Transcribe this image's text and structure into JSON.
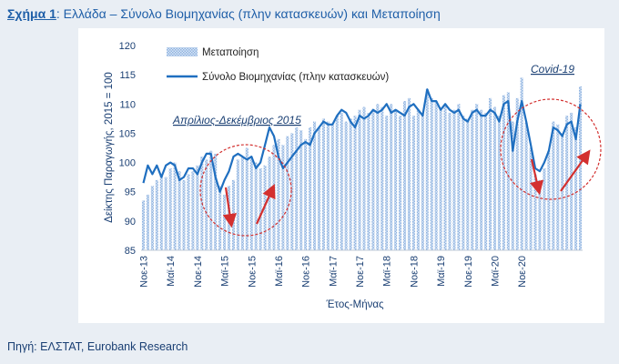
{
  "figure": {
    "label": "Σχήμα 1",
    "title": ": Ελλάδα – Σύνολο Βιομηχανίας (πλην κατασκευών) και Μεταποίηση",
    "source": "Πηγή: ΕΛΣΤΑΤ, Eurobank Research"
  },
  "colors": {
    "line": "#1f6fc0",
    "bars": "#8fb3e0",
    "arrow": "#d3302f",
    "circle": "#d3302f",
    "text": "#1a3f73"
  },
  "chart_data": {
    "type": "bar",
    "ylabel": "Δείκτης Παραγωγής, 2015 = 100",
    "xlabel": "Έτος-Μήνας",
    "ylim": [
      85,
      120
    ],
    "yticks": [
      85,
      90,
      95,
      100,
      105,
      110,
      115,
      120
    ],
    "xtick_labels": [
      "Νοε-13",
      "Μαϊ-14",
      "Νοε-14",
      "Μαϊ-15",
      "Νοε-15",
      "Μαϊ-16",
      "Νοε-16",
      "Μαϊ-17",
      "Νοε-17",
      "Μαϊ-18",
      "Νοε-18",
      "Μαϊ-19",
      "Νοε-19",
      "Μαϊ-20",
      "Νοε-20"
    ],
    "legend_position": "top-left",
    "series": [
      {
        "name": "Μεταποίηση",
        "kind": "bar",
        "values": [
          93.5,
          94.5,
          96,
          97,
          98,
          97.5,
          99,
          100,
          98.5,
          97,
          98,
          98.5,
          99.5,
          101,
          100.5,
          102,
          101.5,
          96,
          94.5,
          96,
          97,
          100.5,
          101,
          102.5,
          101,
          100,
          99,
          99.5,
          101,
          103,
          104,
          103,
          104.5,
          105,
          106,
          105.5,
          104,
          106,
          107,
          106,
          107.5,
          107,
          106.5,
          108,
          108.5,
          107,
          107.5,
          108,
          109,
          109.5,
          108.5,
          109,
          110,
          109.5,
          108,
          110,
          109,
          108,
          110.5,
          111,
          108,
          109,
          108.5,
          112.5,
          111,
          110.5,
          109,
          110,
          108.5,
          109,
          110,
          108,
          107.5,
          109,
          110,
          109,
          108.5,
          111,
          109.5,
          108,
          111.5,
          112,
          107,
          111,
          114.5,
          107,
          102.5,
          98,
          97,
          99,
          102,
          107,
          106.5,
          105,
          108,
          108.5,
          106,
          113
        ]
      },
      {
        "name": "Σύνολο Βιομηχανίας (πλην κατασκευών)",
        "kind": "line",
        "values": [
          96.5,
          99.5,
          98,
          99.5,
          97.5,
          99.5,
          100,
          99.5,
          97,
          97.5,
          99,
          99,
          98,
          100,
          101.5,
          101.5,
          97.5,
          95,
          97,
          98.5,
          101,
          101.5,
          101,
          100.5,
          101,
          99,
          100,
          103,
          106,
          104.5,
          101,
          99,
          100,
          101,
          102,
          103,
          103.5,
          103,
          105,
          106,
          107,
          106.5,
          106.5,
          108,
          109,
          108.5,
          107,
          106,
          108,
          107.5,
          108,
          109,
          108.5,
          109,
          110,
          108.5,
          109,
          108.5,
          108,
          109.5,
          110,
          109,
          108,
          112.5,
          110.5,
          110.5,
          109,
          110,
          109,
          108.5,
          109,
          107.5,
          107,
          108.5,
          109,
          108,
          108,
          109,
          108.5,
          107,
          110,
          110.5,
          102,
          107,
          110.5,
          107,
          103,
          99,
          98.5,
          100,
          102,
          106,
          105.5,
          104.5,
          106.5,
          107,
          104,
          110
        ]
      }
    ],
    "annotations": [
      {
        "text": "Απρίλιος-Δεκέμβριος 2015"
      },
      {
        "text": "Covid-19"
      }
    ]
  }
}
